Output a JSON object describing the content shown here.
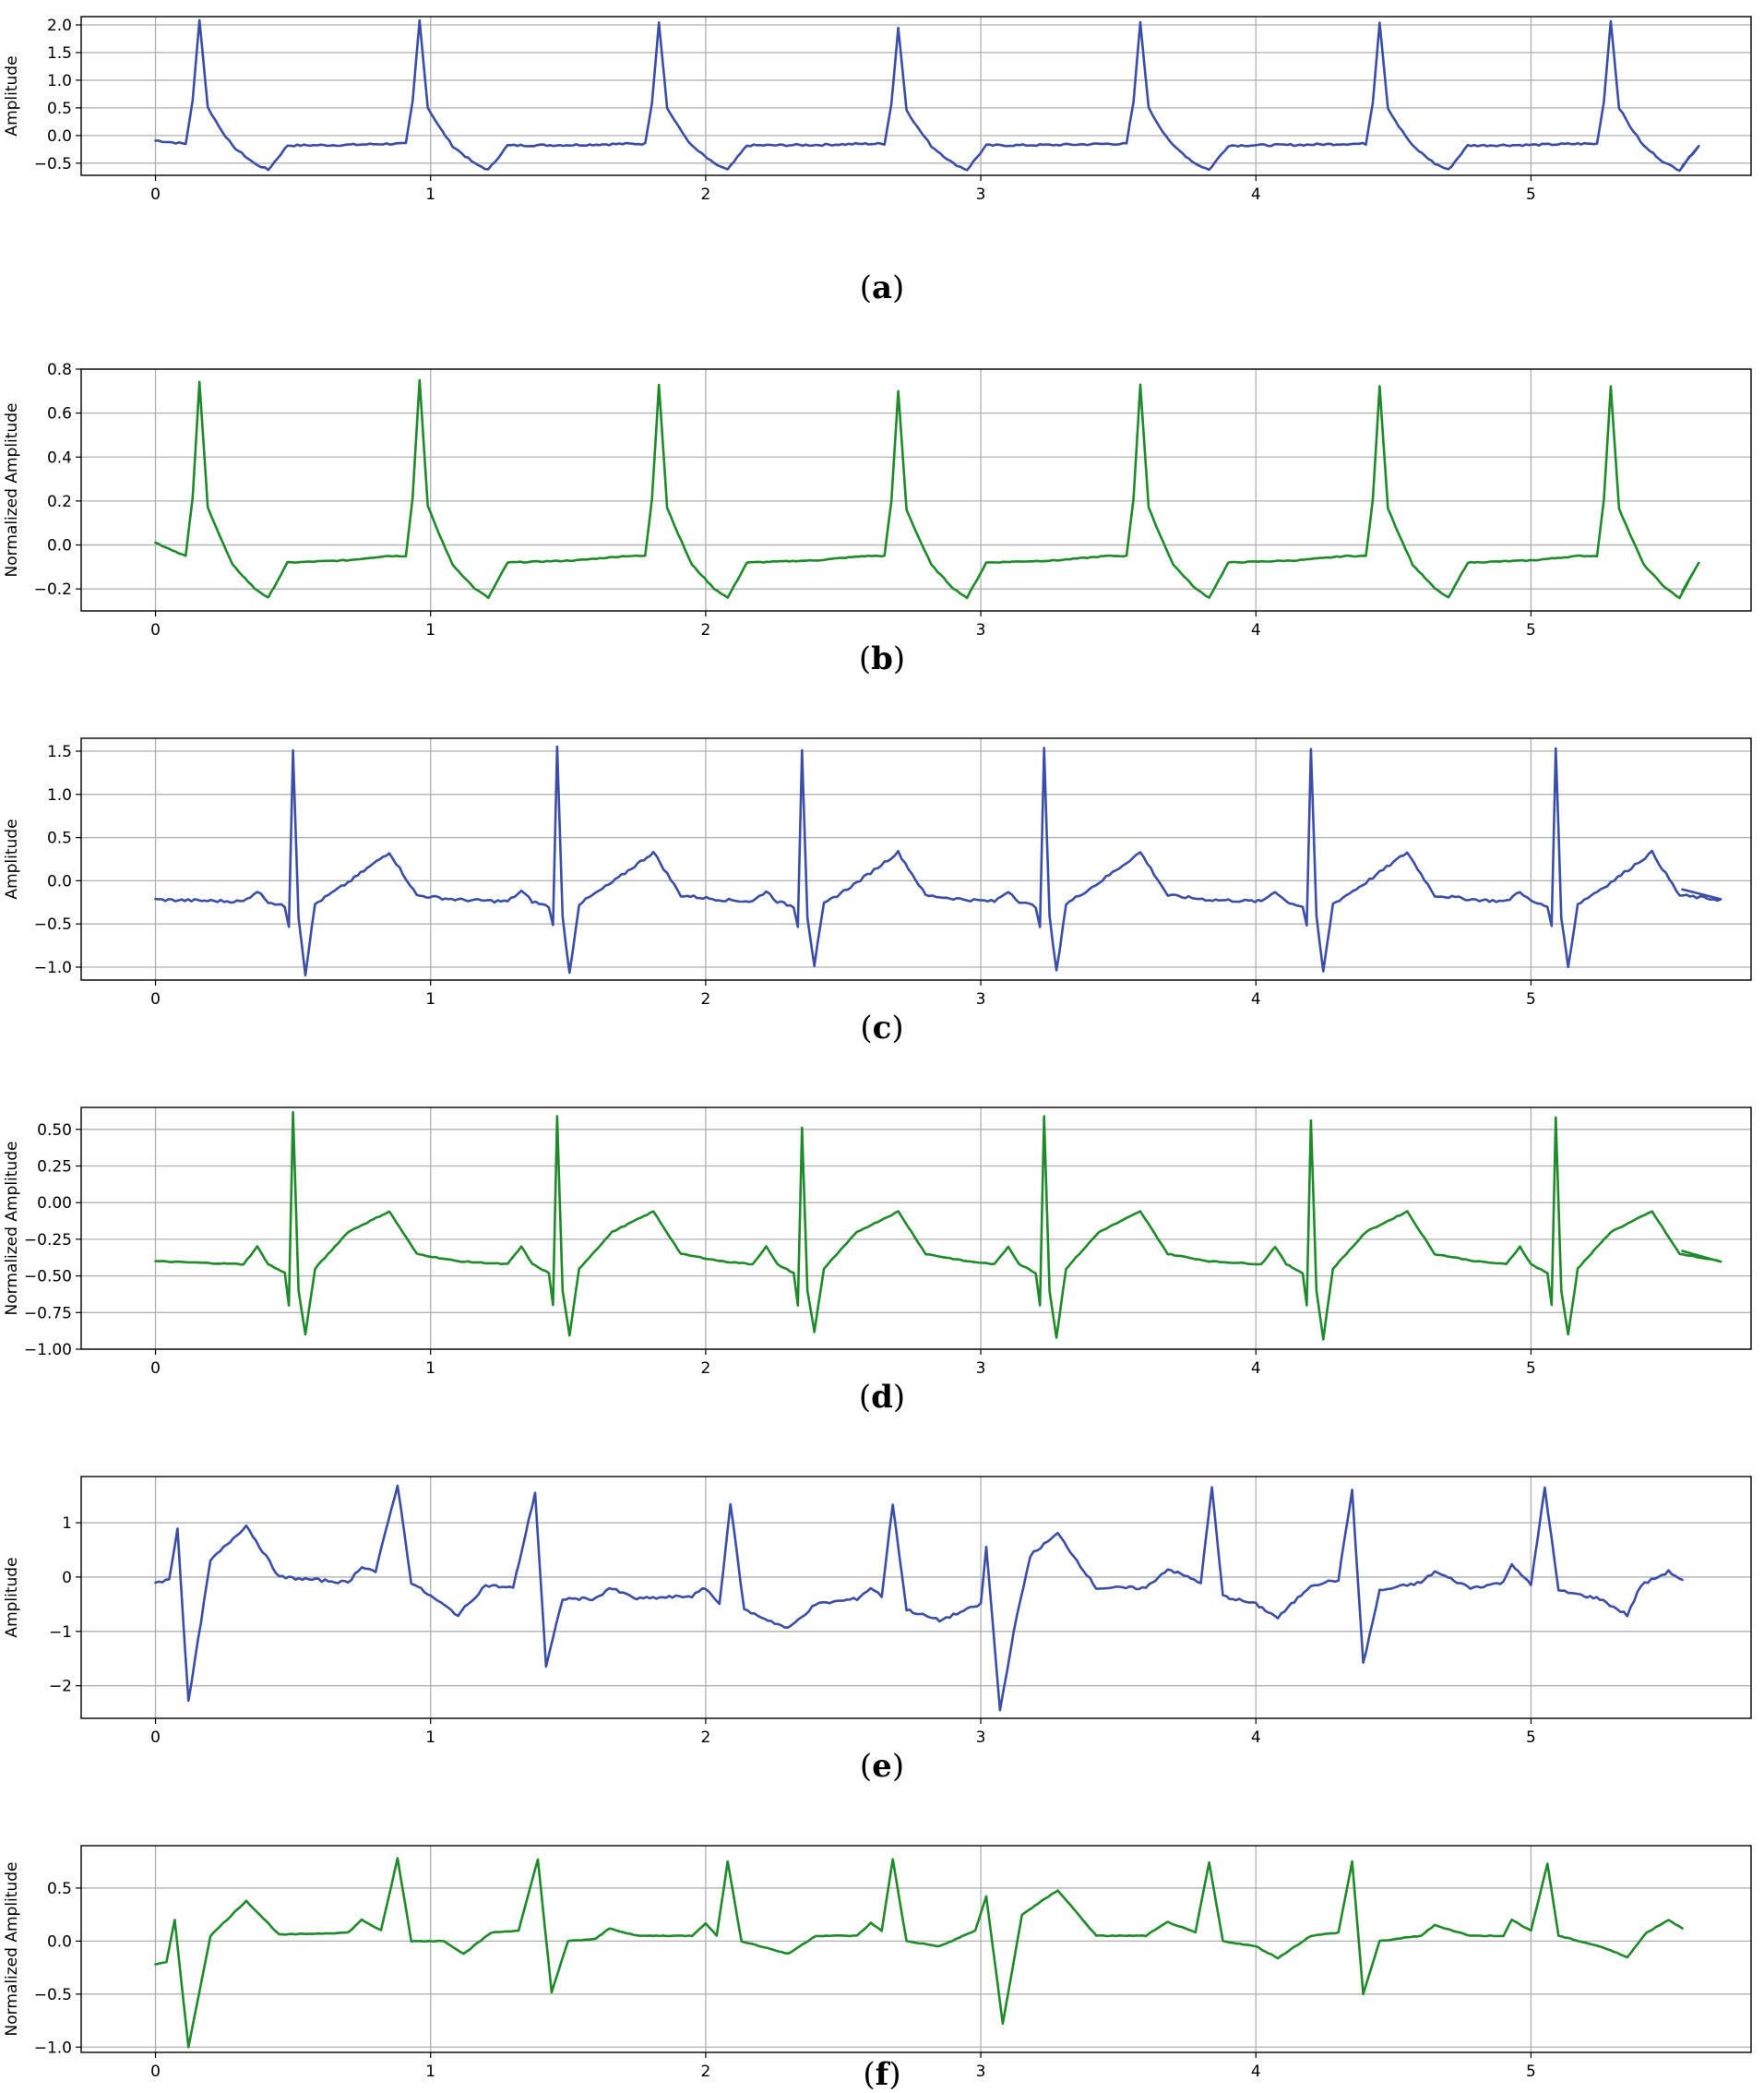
{
  "colors": {
    "raw": "#3a4ea8",
    "normalized": "#1f8a2a"
  },
  "chart_data": [
    {
      "type": "line",
      "panel": "a",
      "caption": "a",
      "ylabel": "Amplitude",
      "xlim": [
        -0.27,
        5.8
      ],
      "ylim": [
        -0.72,
        2.15
      ],
      "xticks": [
        0,
        1,
        2,
        3,
        4,
        5
      ],
      "xtick_labels": [
        "0",
        "1",
        "2",
        "3",
        "4",
        "5"
      ],
      "yticks": [
        -0.5,
        0.0,
        0.5,
        1.0,
        1.5,
        2.0
      ],
      "ytick_labels": [
        "−0.5",
        "0.0",
        "0.5",
        "1.0",
        "1.5",
        "2.0"
      ],
      "grid": true,
      "color": "raw",
      "shape": "upright",
      "beats": [
        0.16,
        0.96,
        1.83,
        2.7,
        3.58,
        4.45,
        5.29
      ],
      "peaks": [
        2.1,
        2.08,
        2.05,
        1.95,
        2.05,
        2.05,
        2.08
      ],
      "baseline": -0.17,
      "trough": -0.62,
      "end": [
        5.55,
        -0.55
      ]
    },
    {
      "type": "line",
      "panel": "b",
      "caption": "b",
      "ylabel": "Normalized Amplitude",
      "xlim": [
        -0.27,
        5.8
      ],
      "ylim": [
        -0.3,
        0.8
      ],
      "xticks": [
        0,
        1,
        2,
        3,
        4,
        5
      ],
      "xtick_labels": [
        "0",
        "1",
        "2",
        "3",
        "4",
        "5"
      ],
      "yticks": [
        -0.2,
        0.0,
        0.2,
        0.4,
        0.6,
        0.8
      ],
      "ytick_labels": [
        "−0.2",
        "0.0",
        "0.2",
        "0.4",
        "0.6",
        "0.8"
      ],
      "grid": true,
      "color": "normalized",
      "shape": "upright",
      "beats": [
        0.16,
        0.96,
        1.83,
        2.7,
        3.58,
        4.45,
        5.29
      ],
      "peaks": [
        0.74,
        0.75,
        0.73,
        0.7,
        0.73,
        0.72,
        0.72
      ],
      "baseline": -0.07,
      "trough": -0.24,
      "end": [
        5.55,
        -0.21
      ]
    },
    {
      "type": "line",
      "panel": "c",
      "caption": "c",
      "ylabel": "Amplitude",
      "xlim": [
        -0.27,
        5.8
      ],
      "ylim": [
        -1.15,
        1.65
      ],
      "xticks": [
        0,
        1,
        2,
        3,
        4,
        5
      ],
      "xtick_labels": [
        "0",
        "1",
        "2",
        "3",
        "4",
        "5"
      ],
      "yticks": [
        -1.0,
        -0.5,
        0.0,
        0.5,
        1.0,
        1.5
      ],
      "ytick_labels": [
        "−1.0",
        "−0.5",
        "0.0",
        "0.5",
        "1.0",
        "1.5"
      ],
      "grid": true,
      "color": "raw",
      "shape": "qrs",
      "beats": [
        0.5,
        1.46,
        2.35,
        3.23,
        4.2,
        5.09
      ],
      "peaks": [
        1.52,
        1.57,
        1.52,
        1.52,
        1.53,
        1.55
      ],
      "dips": [
        -1.08,
        -1.07,
        -0.98,
        -1.05,
        -1.05,
        -1.0
      ],
      "baseline": -0.22,
      "twave": 0.33,
      "end": [
        5.55,
        -0.1
      ]
    },
    {
      "type": "line",
      "panel": "d",
      "caption": "d",
      "ylabel": "Normalized Amplitude",
      "xlim": [
        -0.27,
        5.8
      ],
      "ylim": [
        -1.0,
        0.65
      ],
      "xticks": [
        0,
        1,
        2,
        3,
        4,
        5
      ],
      "xtick_labels": [
        "0",
        "1",
        "2",
        "3",
        "4",
        "5"
      ],
      "yticks": [
        -1.0,
        -0.75,
        -0.5,
        -0.25,
        0.0,
        0.25,
        0.5
      ],
      "ytick_labels": [
        "−1.00",
        "−0.75",
        "−0.50",
        "−0.25",
        "0.00",
        "0.25",
        "0.50"
      ],
      "grid": true,
      "color": "normalized",
      "shape": "qrs",
      "beats": [
        0.5,
        1.46,
        2.35,
        3.23,
        4.2,
        5.09
      ],
      "peaks": [
        0.62,
        0.59,
        0.51,
        0.59,
        0.56,
        0.58
      ],
      "dips": [
        -0.9,
        -0.91,
        -0.88,
        -0.92,
        -0.93,
        -0.9
      ],
      "baseline": -0.4,
      "twave": -0.06,
      "end": [
        5.55,
        -0.33
      ]
    },
    {
      "type": "line",
      "panel": "e",
      "caption": "e",
      "ylabel": "Amplitude",
      "xlim": [
        -0.27,
        5.8
      ],
      "ylim": [
        -2.6,
        1.85
      ],
      "xticks": [
        0,
        1,
        2,
        3,
        4,
        5
      ],
      "xtick_labels": [
        "0",
        "1",
        "2",
        "3",
        "4",
        "5"
      ],
      "yticks": [
        -2,
        -1,
        0,
        1
      ],
      "ytick_labels": [
        "−2",
        "−1",
        "0",
        "1"
      ],
      "grid": true,
      "color": "raw",
      "shape": "mixed",
      "points": [
        [
          0,
          -0.1
        ],
        [
          0.05,
          -0.05
        ],
        [
          0.08,
          0.9
        ],
        [
          0.12,
          -2.3
        ],
        [
          0.2,
          0.3
        ],
        [
          0.33,
          0.95
        ],
        [
          0.45,
          0.0
        ],
        [
          0.7,
          -0.1
        ],
        [
          0.75,
          0.2
        ],
        [
          0.8,
          0.1
        ],
        [
          0.88,
          1.7
        ],
        [
          0.93,
          -0.1
        ],
        [
          1.0,
          -0.35
        ],
        [
          1.1,
          -0.7
        ],
        [
          1.2,
          -0.15
        ],
        [
          1.3,
          -0.2
        ],
        [
          1.38,
          1.55
        ],
        [
          1.42,
          -1.65
        ],
        [
          1.48,
          -0.4
        ],
        [
          1.6,
          -0.4
        ],
        [
          1.65,
          -0.2
        ],
        [
          1.75,
          -0.4
        ],
        [
          1.95,
          -0.35
        ],
        [
          2.0,
          -0.2
        ],
        [
          2.05,
          -0.5
        ],
        [
          2.09,
          1.35
        ],
        [
          2.14,
          -0.6
        ],
        [
          2.3,
          -0.95
        ],
        [
          2.4,
          -0.5
        ],
        [
          2.55,
          -0.4
        ],
        [
          2.6,
          -0.2
        ],
        [
          2.64,
          -0.35
        ],
        [
          2.68,
          1.35
        ],
        [
          2.73,
          -0.6
        ],
        [
          2.85,
          -0.8
        ],
        [
          3.0,
          -0.5
        ],
        [
          3.02,
          0.55
        ],
        [
          3.07,
          -2.45
        ],
        [
          3.12,
          -1.0
        ],
        [
          3.18,
          0.4
        ],
        [
          3.28,
          0.8
        ],
        [
          3.42,
          -0.2
        ],
        [
          3.6,
          -0.2
        ],
        [
          3.68,
          0.15
        ],
        [
          3.8,
          -0.1
        ],
        [
          3.84,
          1.65
        ],
        [
          3.88,
          -0.35
        ],
        [
          4.0,
          -0.5
        ],
        [
          4.08,
          -0.75
        ],
        [
          4.2,
          -0.15
        ],
        [
          4.3,
          -0.05
        ],
        [
          4.35,
          1.6
        ],
        [
          4.39,
          -1.6
        ],
        [
          4.45,
          -0.25
        ],
        [
          4.6,
          -0.1
        ],
        [
          4.65,
          0.1
        ],
        [
          4.78,
          -0.2
        ],
        [
          4.9,
          -0.1
        ],
        [
          4.93,
          0.25
        ],
        [
          5.0,
          -0.15
        ],
        [
          5.05,
          1.65
        ],
        [
          5.1,
          -0.25
        ],
        [
          5.25,
          -0.4
        ],
        [
          5.35,
          -0.7
        ],
        [
          5.4,
          -0.15
        ],
        [
          5.5,
          0.1
        ],
        [
          5.55,
          -0.05
        ]
      ]
    },
    {
      "type": "line",
      "panel": "f",
      "caption": "f",
      "ylabel": "Normalized Amplitude",
      "xlim": [
        -0.27,
        5.8
      ],
      "ylim": [
        -1.05,
        0.9
      ],
      "xticks": [
        0,
        1,
        2,
        3,
        4,
        5
      ],
      "xtick_labels": [
        "0",
        "1",
        "2",
        "3",
        "4",
        "5"
      ],
      "yticks": [
        -1.0,
        -0.5,
        0.0,
        0.5
      ],
      "ytick_labels": [
        "−1.0",
        "−0.5",
        "0.0",
        "0.5"
      ],
      "grid": true,
      "color": "normalized",
      "shape": "mixed",
      "points": [
        [
          0,
          -0.22
        ],
        [
          0.04,
          -0.2
        ],
        [
          0.07,
          0.2
        ],
        [
          0.12,
          -1.0
        ],
        [
          0.2,
          0.05
        ],
        [
          0.33,
          0.38
        ],
        [
          0.45,
          0.06
        ],
        [
          0.7,
          0.08
        ],
        [
          0.75,
          0.2
        ],
        [
          0.82,
          0.1
        ],
        [
          0.88,
          0.78
        ],
        [
          0.93,
          0.0
        ],
        [
          1.05,
          0.0
        ],
        [
          1.12,
          -0.12
        ],
        [
          1.22,
          0.08
        ],
        [
          1.32,
          0.1
        ],
        [
          1.39,
          0.77
        ],
        [
          1.44,
          -0.48
        ],
        [
          1.5,
          0.0
        ],
        [
          1.6,
          0.02
        ],
        [
          1.65,
          0.12
        ],
        [
          1.75,
          0.05
        ],
        [
          1.95,
          0.05
        ],
        [
          2.0,
          0.17
        ],
        [
          2.04,
          0.05
        ],
        [
          2.08,
          0.75
        ],
        [
          2.13,
          0.0
        ],
        [
          2.3,
          -0.12
        ],
        [
          2.4,
          0.05
        ],
        [
          2.55,
          0.05
        ],
        [
          2.6,
          0.17
        ],
        [
          2.64,
          0.1
        ],
        [
          2.68,
          0.77
        ],
        [
          2.73,
          0.0
        ],
        [
          2.85,
          -0.05
        ],
        [
          2.98,
          0.1
        ],
        [
          3.02,
          0.42
        ],
        [
          3.08,
          -0.78
        ],
        [
          3.15,
          0.25
        ],
        [
          3.28,
          0.48
        ],
        [
          3.42,
          0.05
        ],
        [
          3.6,
          0.05
        ],
        [
          3.68,
          0.18
        ],
        [
          3.78,
          0.08
        ],
        [
          3.83,
          0.74
        ],
        [
          3.88,
          0.0
        ],
        [
          4.0,
          -0.05
        ],
        [
          4.08,
          -0.16
        ],
        [
          4.2,
          0.05
        ],
        [
          4.3,
          0.08
        ],
        [
          4.35,
          0.75
        ],
        [
          4.39,
          -0.5
        ],
        [
          4.45,
          0.0
        ],
        [
          4.6,
          0.05
        ],
        [
          4.65,
          0.15
        ],
        [
          4.78,
          0.05
        ],
        [
          4.9,
          0.05
        ],
        [
          4.93,
          0.2
        ],
        [
          5.0,
          0.1
        ],
        [
          5.06,
          0.73
        ],
        [
          5.1,
          0.05
        ],
        [
          5.25,
          -0.05
        ],
        [
          5.35,
          -0.15
        ],
        [
          5.42,
          0.08
        ],
        [
          5.5,
          0.2
        ],
        [
          5.55,
          0.12
        ]
      ]
    }
  ]
}
